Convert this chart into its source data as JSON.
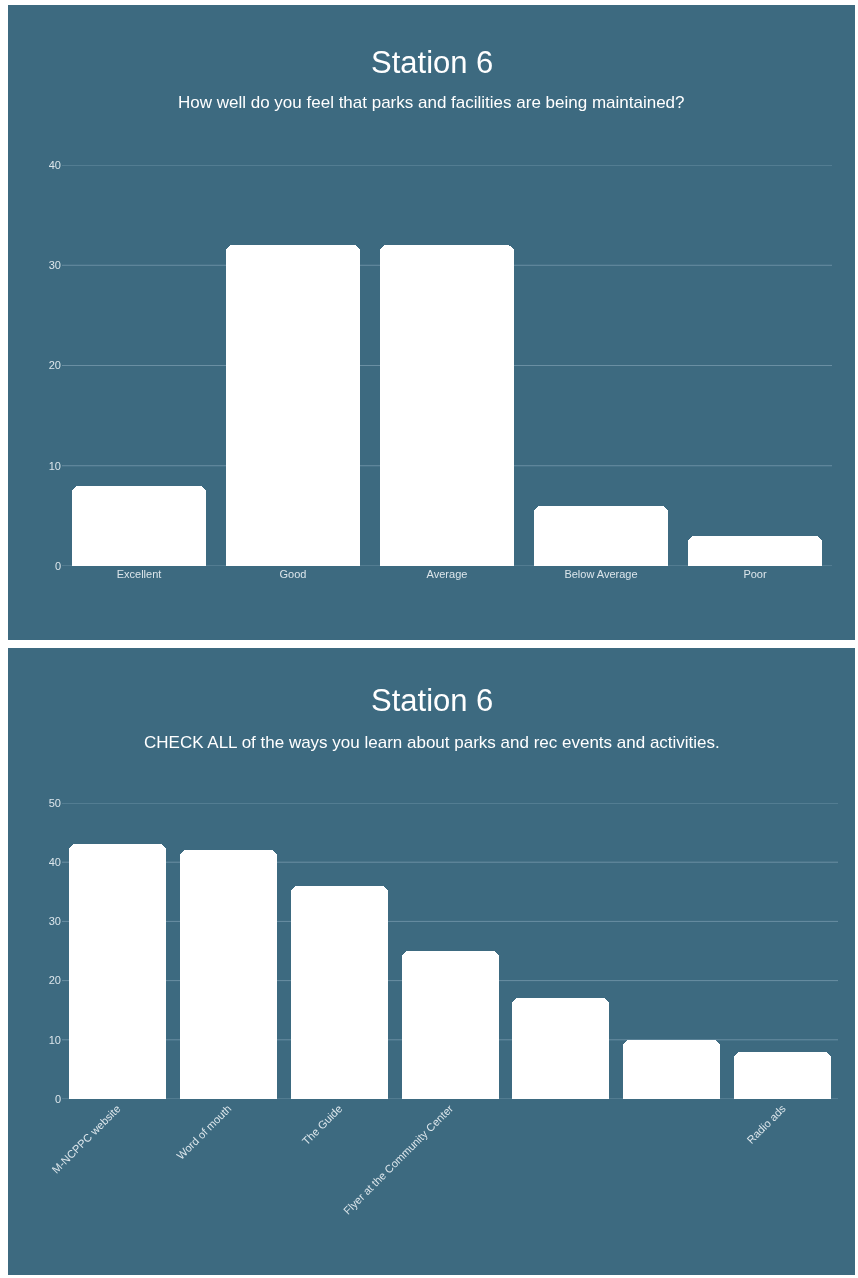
{
  "chart_data": [
    {
      "type": "bar",
      "title": "Station 6",
      "subtitle": "How well do you feel that parks and facilities are being maintained?",
      "categories": [
        "Excellent",
        "Good",
        "Average",
        "Below Average",
        "Poor"
      ],
      "values": [
        8,
        32,
        32,
        6,
        3
      ],
      "color": "#ffffff",
      "ylim": [
        0,
        40
      ],
      "yticks": [
        0,
        10,
        20,
        30,
        40
      ],
      "grid": "y"
    },
    {
      "type": "bar",
      "title": "Station 6",
      "subtitle": "CHECK ALL of the ways you learn about parks and rec events and activities.",
      "categories": [
        "M-NCPPC website",
        "Word of mouth",
        "The Guide",
        "Flyer at the Community Center",
        null,
        null,
        "Radio ads"
      ],
      "values": [
        43,
        42,
        36,
        25,
        17,
        10,
        8
      ],
      "color": "#ffffff",
      "ylim": [
        0,
        50
      ],
      "yticks": [
        0,
        10,
        20,
        30,
        40,
        50
      ],
      "grid": "y"
    }
  ]
}
